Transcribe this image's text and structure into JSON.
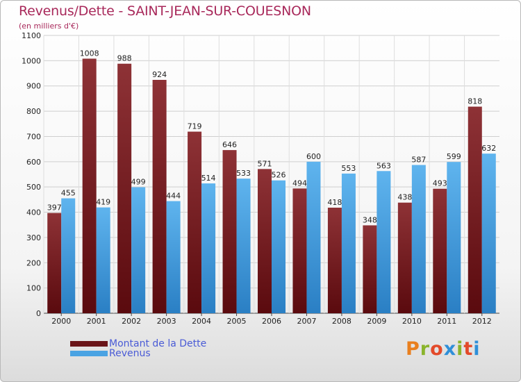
{
  "header": {
    "title": "Revenus/Dette - SAINT-JEAN-SUR-COUESNON",
    "subtitle": "(en milliers d'€)"
  },
  "legend": {
    "dette_label": "Montant de la Dette",
    "revenus_label": "Revenus"
  },
  "logo": {
    "text": "Proxiti",
    "letter_colors": [
      "#e97f1e",
      "#8ab42c",
      "#e34a2a",
      "#2f8fd8",
      "#8ab42c",
      "#e34a2a",
      "#2f8fd8"
    ]
  },
  "colors": {
    "dette": "#7a1f22",
    "revenus": "#4aa3e3",
    "title": "#a8285a"
  },
  "chart_data": {
    "type": "bar",
    "categories": [
      "2000",
      "2001",
      "2002",
      "2003",
      "2004",
      "2005",
      "2006",
      "2007",
      "2008",
      "2009",
      "2010",
      "2011",
      "2012"
    ],
    "series": [
      {
        "name": "Montant de la Dette",
        "values": [
          397,
          1008,
          988,
          924,
          719,
          646,
          571,
          494,
          418,
          348,
          438,
          493,
          818
        ]
      },
      {
        "name": "Revenus",
        "values": [
          455,
          419,
          499,
          444,
          514,
          533,
          526,
          600,
          553,
          563,
          587,
          599,
          632
        ]
      }
    ],
    "title": "Revenus/Dette - SAINT-JEAN-SUR-COUESNON",
    "ylim": [
      0,
      1100
    ],
    "yticks": [
      "0",
      "100",
      "200",
      "300",
      "400",
      "500",
      "600",
      "700",
      "800",
      "900",
      "1000",
      "1100"
    ],
    "grid": true,
    "legend_position": "bottom-left"
  }
}
